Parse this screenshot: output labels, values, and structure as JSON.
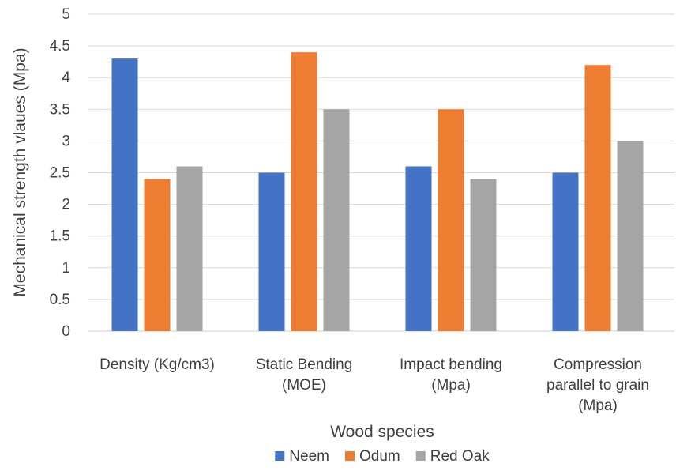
{
  "chart_data": {
    "type": "bar",
    "title": "",
    "xlabel": "Wood species",
    "ylabel": "Mechanical strength vlaues (Mpa)",
    "ylim": [
      0,
      5
    ],
    "yticks": [
      "0",
      "0.5",
      "1",
      "1.5",
      "2",
      "2.5",
      "3",
      "3.5",
      "4",
      "4.5",
      "5"
    ],
    "grid": true,
    "legend_position": "bottom",
    "categories": [
      [
        "Density (Kg/cm3)"
      ],
      [
        "Static Bending",
        "(MOE)"
      ],
      [
        "Impact bending",
        "(Mpa)"
      ],
      [
        "Compression",
        "parallel to grain",
        "(Mpa)"
      ]
    ],
    "series": [
      {
        "name": "Neem",
        "color": "#4472C4",
        "values": [
          4.3,
          2.5,
          2.6,
          2.5
        ]
      },
      {
        "name": "Odum",
        "color": "#ED7D31",
        "values": [
          2.4,
          4.4,
          3.5,
          4.2
        ]
      },
      {
        "name": "Red Oak",
        "color": "#A5A5A5",
        "values": [
          2.6,
          3.5,
          2.4,
          3.0
        ]
      }
    ]
  }
}
